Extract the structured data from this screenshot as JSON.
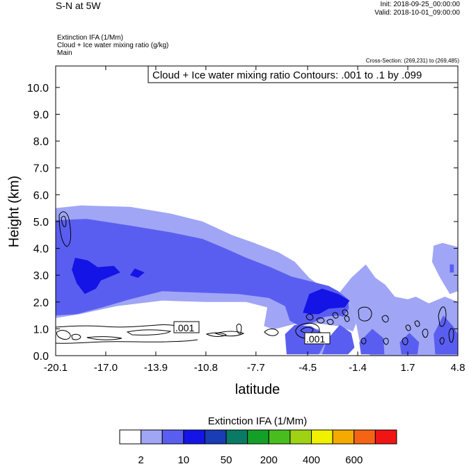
{
  "header": {
    "title": "S-N at 5W",
    "init": "Init: 2018-09-25_00:00:00",
    "valid": "Valid: 2018-10-01_09:00:00"
  },
  "meta": {
    "line1": "Extinction IFA   (1/Mm)",
    "line2": "Cloud + Ice water mixing ratio   (g/kg)",
    "line3": "Main"
  },
  "cross_section": "Cross-Section: (269,231) to (269,485)",
  "contour_box": "Cloud + Ice water mixing ratio Contours: .001 to .1 by .099",
  "contour_labels": [
    ".001",
    ".001"
  ],
  "colorbar": {
    "title": "Extinction IFA  (1/Mm)",
    "colors": [
      "#ffffff",
      "#a0a6f5",
      "#5a5ef0",
      "#1414e6",
      "#1a3cb4",
      "#0a7a64",
      "#14a028",
      "#48be1e",
      "#a0d214",
      "#f0f000",
      "#f5aa00",
      "#f56414",
      "#f01414"
    ],
    "labels": [
      "2",
      "10",
      "50",
      "200",
      "400",
      "600"
    ]
  },
  "chart_data": {
    "type": "heatmap",
    "title": "Extinction IFA (1/Mm) with Cloud + Ice water mixing ratio contours",
    "xlabel": "latitude",
    "ylabel": "Height (km)",
    "xlim": [
      -20.1,
      4.8
    ],
    "ylim": [
      0.0,
      10.8
    ],
    "x_ticks": [
      "-20.1",
      "-17.0",
      "-13.9",
      "-10.8",
      "-7.7",
      "-4.5",
      "-1.4",
      "1.7",
      "4.8"
    ],
    "x_tick_values": [
      -20.1,
      -17.0,
      -13.9,
      -10.8,
      -7.7,
      -4.5,
      -1.4,
      1.7,
      4.8
    ],
    "y_ticks": [
      "0.0",
      "1.0",
      "2.0",
      "3.0",
      "4.0",
      "5.0",
      "6.0",
      "7.0",
      "8.0",
      "9.0",
      "10.0"
    ],
    "y_tick_values": [
      0,
      1,
      2,
      3,
      4,
      5,
      6,
      7,
      8,
      9,
      10
    ],
    "layers": [
      {
        "name": "light",
        "color": "#a0a6f5",
        "polygons": [
          [
            [
              -20.1,
              1.4
            ],
            [
              -20.1,
              5.5
            ],
            [
              -18.5,
              5.6
            ],
            [
              -15.5,
              5.55
            ],
            [
              -13,
              5.3
            ],
            [
              -11,
              5.0
            ],
            [
              -9.2,
              4.5
            ],
            [
              -7.8,
              4.2
            ],
            [
              -6.3,
              3.85
            ],
            [
              -5.3,
              3.5
            ],
            [
              -4.4,
              2.9
            ],
            [
              -3.6,
              2.55
            ],
            [
              -2.6,
              2.3
            ],
            [
              -1.8,
              1.9
            ],
            [
              -1.5,
              1.2
            ],
            [
              -1.7,
              0.9
            ],
            [
              -2.6,
              1.1
            ],
            [
              -3.8,
              1.2
            ],
            [
              -5.2,
              1.2
            ],
            [
              -6.6,
              0.98
            ],
            [
              -7.2,
              1.1
            ],
            [
              -7.0,
              1.8
            ],
            [
              -8.3,
              2.0
            ],
            [
              -10.8,
              2.0
            ],
            [
              -13.5,
              2.05
            ],
            [
              -16.3,
              1.85
            ],
            [
              -18.6,
              1.55
            ]
          ],
          [
            [
              -2.6,
              2.3
            ],
            [
              -1.8,
              2.9
            ],
            [
              -0.9,
              3.4
            ],
            [
              -0.3,
              2.9
            ],
            [
              0.3,
              2.65
            ],
            [
              0.9,
              2.2
            ],
            [
              1.7,
              2.1
            ],
            [
              2.2,
              2.2
            ],
            [
              3.0,
              1.95
            ],
            [
              4.0,
              2.2
            ],
            [
              4.8,
              2.0
            ],
            [
              4.8,
              0.0
            ],
            [
              -0.6,
              0.0
            ],
            [
              -1.2,
              0.3
            ],
            [
              -1.5,
              1.2
            ],
            [
              -1.8,
              1.9
            ]
          ],
          [
            [
              3.2,
              3.5
            ],
            [
              3.3,
              4.1
            ],
            [
              3.85,
              4.2
            ],
            [
              4.8,
              4.05
            ],
            [
              4.8,
              2.4
            ],
            [
              4.3,
              2.3
            ],
            [
              3.7,
              2.9
            ]
          ],
          [
            [
              -4.7,
              0.1
            ],
            [
              -4.7,
              0.95
            ],
            [
              -3.8,
              1.0
            ],
            [
              -3.3,
              0.3
            ],
            [
              -3.6,
              0.05
            ]
          ]
        ]
      },
      {
        "name": "medium",
        "color": "#5a5ef0",
        "polygons": [
          [
            [
              -20.1,
              1.5
            ],
            [
              -20.1,
              5.05
            ],
            [
              -18.2,
              5.1
            ],
            [
              -15.5,
              4.85
            ],
            [
              -13,
              4.6
            ],
            [
              -11,
              4.35
            ],
            [
              -9.6,
              4.0
            ],
            [
              -8.3,
              3.65
            ],
            [
              -6.8,
              3.3
            ],
            [
              -5.5,
              2.95
            ],
            [
              -4.2,
              2.75
            ],
            [
              -3.2,
              2.6
            ],
            [
              -2.6,
              2.4
            ],
            [
              -2.0,
              2.1
            ],
            [
              -1.95,
              1.75
            ],
            [
              -2.3,
              1.45
            ],
            [
              -2.6,
              1.5
            ],
            [
              -3.4,
              1.45
            ],
            [
              -4.3,
              1.2
            ],
            [
              -5.0,
              1.1
            ],
            [
              -5.6,
              1.3
            ],
            [
              -5.9,
              1.85
            ],
            [
              -6.9,
              2.15
            ],
            [
              -8.8,
              2.3
            ],
            [
              -11.2,
              2.35
            ],
            [
              -13.5,
              2.4
            ],
            [
              -15.5,
              2.1
            ],
            [
              -17.2,
              1.8
            ],
            [
              -18.8,
              1.55
            ]
          ],
          [
            [
              -5.8,
              0.05
            ],
            [
              -5.9,
              0.8
            ],
            [
              -5.3,
              1.15
            ],
            [
              -4.3,
              1.1
            ],
            [
              -3.6,
              0.85
            ],
            [
              -3.4,
              0.5
            ],
            [
              -3.8,
              0.05
            ]
          ],
          [
            [
              -3.6,
              0.05
            ],
            [
              -3.3,
              0.6
            ],
            [
              -2.5,
              1.15
            ],
            [
              -1.8,
              0.85
            ],
            [
              -1.6,
              0.3
            ],
            [
              -2.0,
              0.05
            ]
          ],
          [
            [
              -1.2,
              0.05
            ],
            [
              -1.3,
              0.5
            ],
            [
              -0.5,
              1.0
            ],
            [
              0.2,
              0.65
            ],
            [
              0.25,
              0.05
            ]
          ],
          [
            [
              1.3,
              0.05
            ],
            [
              1.2,
              0.5
            ],
            [
              1.8,
              0.85
            ],
            [
              2.4,
              0.5
            ],
            [
              2.3,
              0.05
            ]
          ],
          [
            [
              3.4,
              0.05
            ],
            [
              3.3,
              0.8
            ],
            [
              3.9,
              1.5
            ],
            [
              4.5,
              1.1
            ],
            [
              4.8,
              0.8
            ],
            [
              4.8,
              0.05
            ]
          ],
          [
            [
              4.3,
              3.1
            ],
            [
              4.3,
              3.4
            ],
            [
              4.55,
              3.4
            ],
            [
              4.55,
              3.1
            ]
          ]
        ]
      },
      {
        "name": "dark",
        "color": "#1414e6",
        "polygons": [
          [
            [
              -19.1,
              3.2
            ],
            [
              -18.9,
              3.65
            ],
            [
              -18.1,
              3.55
            ],
            [
              -17.5,
              3.3
            ],
            [
              -16.5,
              3.35
            ],
            [
              -16.1,
              3.1
            ],
            [
              -17.3,
              2.8
            ],
            [
              -17.6,
              2.5
            ],
            [
              -18.3,
              2.3
            ],
            [
              -18.8,
              2.7
            ]
          ],
          [
            [
              -15.5,
              3.0
            ],
            [
              -15.2,
              3.25
            ],
            [
              -14.6,
              3.1
            ],
            [
              -15.0,
              2.9
            ]
          ],
          [
            [
              -4.8,
              1.6
            ],
            [
              -4.4,
              2.3
            ],
            [
              -3.6,
              2.5
            ],
            [
              -2.6,
              2.3
            ],
            [
              -1.9,
              2.05
            ],
            [
              -2.2,
              1.8
            ],
            [
              -3.2,
              1.75
            ],
            [
              -3.8,
              1.55
            ],
            [
              -4.3,
              1.55
            ]
          ]
        ]
      }
    ],
    "contours": [
      {
        "level": ".001",
        "region": "lower-left layer",
        "x": [
          -20.1,
          -8.5
        ],
        "y": [
          0.4,
          1.2
        ]
      },
      {
        "level": ".001",
        "region": "lower-right scattered cells",
        "x": [
          -5.2,
          4.3
        ],
        "y": [
          0.1,
          1.9
        ]
      },
      {
        "level": ".001",
        "region": "upper-left small cells",
        "x": [
          -20.1,
          -19.4
        ],
        "y": [
          4.0,
          5.5
        ]
      }
    ]
  }
}
